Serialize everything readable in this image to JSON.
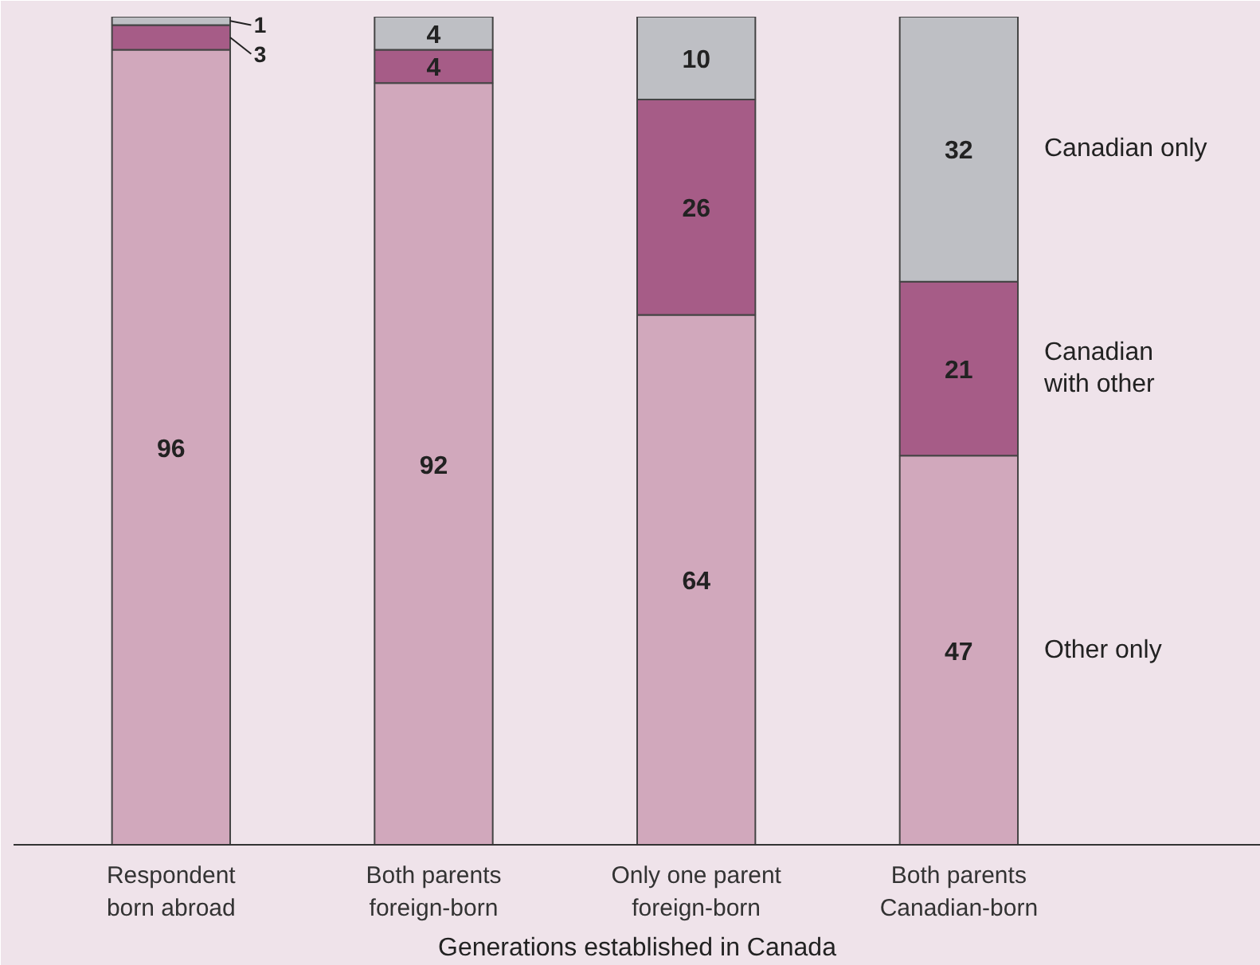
{
  "chart_data": {
    "type": "bar",
    "stacked": true,
    "xlabel": "Generations established in Canada",
    "categories": [
      "Respondent\nborn abroad",
      "Both parents\nforeign-born",
      "Only one parent\nforeign-born",
      "Both parents\nCanadian-born"
    ],
    "series": [
      {
        "name": "Other only",
        "color": "#d1a8bc",
        "values": [
          96,
          92,
          64,
          47
        ]
      },
      {
        "name": "Canadian\nwith other",
        "color": "#a65c87",
        "values": [
          3,
          4,
          26,
          21
        ]
      },
      {
        "name": "Canadian only",
        "color": "#bebfc4",
        "values": [
          1,
          4,
          10,
          32
        ]
      }
    ],
    "data_labels": true,
    "legend": false,
    "grid": false
  }
}
